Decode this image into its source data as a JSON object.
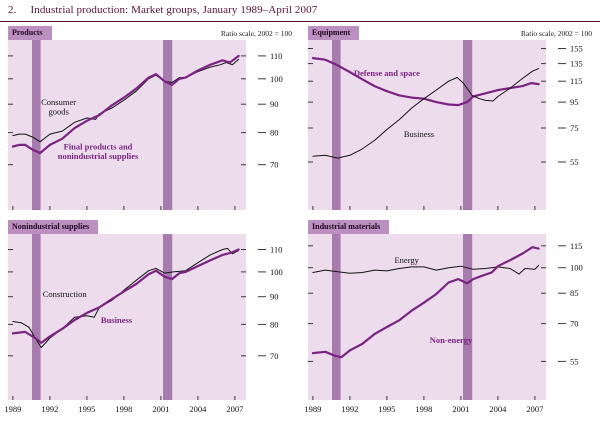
{
  "page": {
    "figure_number": "2.",
    "title": "Industrial production: Market groups, January 1989–April 2007"
  },
  "colors": {
    "plot_bg": "#ecdcec",
    "recession_band": "#a87bae",
    "panel_header": "#bb8fc0",
    "purple_line": "#7a2482",
    "black_line": "#141414",
    "title_text": "#551038",
    "tick": "#3a3a3a"
  },
  "x_axis": {
    "min": 1988.6,
    "max": 2007.9,
    "ticks": [
      1989,
      1992,
      1995,
      1998,
      2001,
      2004,
      2007
    ]
  },
  "recessions": [
    [
      1990.55,
      1991.25
    ],
    [
      2001.17,
      2001.92
    ]
  ],
  "chart_data": [
    {
      "type": "line",
      "title": "Products",
      "scale_note": "Ratio scale, 2002 = 100",
      "log_scale": true,
      "grid": false,
      "y_ticks": [
        70,
        80,
        90,
        100,
        110
      ],
      "y_domain": [
        58,
        117.5
      ],
      "series": [
        {
          "name": "Consumer goods",
          "color": "#141414",
          "width": 1,
          "x": [
            1989,
            1989.5,
            1990,
            1990.6,
            1991.2,
            1992,
            1993,
            1994,
            1995,
            1995.7,
            1996,
            1997,
            1998,
            1999,
            2000,
            2000.6,
            2001.3,
            2001.9,
            2002.5,
            2003,
            2004,
            2005,
            2005.8,
            2006.3,
            2006.8,
            2007.3
          ],
          "values": [
            79,
            79.5,
            79.5,
            78.5,
            77,
            79.5,
            80.5,
            83.5,
            85,
            84.5,
            86.5,
            88.5,
            91.5,
            95,
            100,
            101.5,
            99,
            98.5,
            100.5,
            100.5,
            103,
            105,
            106,
            107,
            106,
            108.5
          ],
          "label": {
            "lines": [
              "Consumer",
              "goods"
            ],
            "x": 1992.7,
            "y": 89,
            "bold": false
          }
        },
        {
          "name": "Final products and nonindustrial supplies",
          "color": "#7a2482",
          "width": 2.2,
          "x": [
            1989,
            1989.5,
            1990,
            1990.6,
            1991.2,
            1992,
            1993,
            1994,
            1995,
            1996,
            1997,
            1998,
            1999,
            2000,
            2000.6,
            2001.3,
            2001.9,
            2002.5,
            2003,
            2004,
            2005,
            2006,
            2006.6,
            2007.3
          ],
          "values": [
            75.5,
            76,
            76,
            74.5,
            73.5,
            76,
            78,
            81.5,
            84,
            86,
            89.5,
            92.5,
            96,
            100.5,
            102,
            99,
            97.5,
            100,
            100.5,
            103.5,
            106,
            108,
            107,
            110
          ],
          "label": {
            "lines": [
              "Final products and",
              "nonindustrial supplies"
            ],
            "x": 1995.9,
            "y": 74,
            "bold": true
          }
        }
      ]
    },
    {
      "type": "line",
      "title": "Equipment",
      "scale_note": "Ratio scale, 2002 = 100",
      "log_scale": true,
      "grid": false,
      "y_ticks": [
        55,
        75,
        95,
        115,
        135,
        155
      ],
      "y_domain": [
        35.5,
        167.5
      ],
      "series": [
        {
          "name": "Defense and space",
          "color": "#7a2482",
          "width": 2.2,
          "x": [
            1989,
            1990,
            1991,
            1992,
            1993,
            1994,
            1995,
            1996,
            1997,
            1998,
            1999,
            2000,
            2000.8,
            2001.5,
            2002,
            2003,
            2004,
            2005,
            2006,
            2006.7,
            2007.3
          ],
          "values": [
            142,
            140,
            133,
            125,
            117,
            110,
            105,
            101,
            99,
            98,
            95,
            93,
            92.5,
            95,
            100,
            103,
            106,
            108,
            110,
            113,
            112
          ],
          "label": {
            "lines": [
              "Defense and space"
            ],
            "x": 1995,
            "y": 124,
            "bold": true
          }
        },
        {
          "name": "Business",
          "color": "#141414",
          "width": 1,
          "x": [
            1989,
            1990,
            1991,
            1992,
            1993,
            1994,
            1995,
            1996,
            1997,
            1998,
            1999,
            2000,
            2000.7,
            2001.2,
            2001.9,
            2002.5,
            2003,
            2003.6,
            2004,
            2005,
            2006,
            2006.8,
            2007.3
          ],
          "values": [
            58,
            58.5,
            57,
            58.5,
            62,
            67,
            74,
            81,
            90,
            98,
            106,
            115,
            119,
            113,
            101,
            98,
            96.5,
            96,
            100,
            108,
            118,
            126,
            129
          ],
          "label": {
            "lines": [
              "Business"
            ],
            "x": 1997.6,
            "y": 71,
            "bold": false
          }
        }
      ]
    },
    {
      "type": "line",
      "title": "Nonindustrial supplies",
      "scale_note": "",
      "log_scale": true,
      "grid": false,
      "y_ticks": [
        70,
        80,
        90,
        100,
        110
      ],
      "y_domain": [
        58,
        117.5
      ],
      "series": [
        {
          "name": "Construction",
          "color": "#141414",
          "width": 1,
          "x": [
            1989,
            1989.7,
            1990.3,
            1990.8,
            1991.3,
            1992,
            1993,
            1994,
            1995,
            1995.6,
            1996,
            1997,
            1998,
            1999,
            2000,
            2000.6,
            2001.3,
            2002,
            2003,
            2004,
            2005,
            2006,
            2006.4,
            2006.8,
            2007.3
          ],
          "values": [
            81,
            80.5,
            79,
            75.5,
            72.5,
            75.5,
            78.5,
            82.5,
            83,
            82.5,
            86,
            88.5,
            92.5,
            96.5,
            100.5,
            101.5,
            99.5,
            100,
            100.5,
            104,
            107.5,
            110,
            110.5,
            108,
            109.5
          ],
          "label": {
            "lines": [
              "Construction"
            ],
            "x": 1993.2,
            "y": 91,
            "bold": false
          }
        },
        {
          "name": "Business",
          "color": "#7a2482",
          "width": 2.2,
          "x": [
            1989,
            1990,
            1990.8,
            1991.3,
            1992,
            1993,
            1994,
            1995,
            1996,
            1997,
            1998,
            1999,
            2000,
            2000.6,
            2001.3,
            2001.9,
            2002.5,
            2003,
            2004,
            2005,
            2006,
            2006.7,
            2007.3
          ],
          "values": [
            77,
            77.5,
            75.5,
            74,
            76,
            78.5,
            81.5,
            84,
            86,
            89,
            92,
            95,
            99,
            100.5,
            98,
            97,
            99.5,
            100,
            102.5,
            105,
            107.5,
            108.5,
            110
          ],
          "label": {
            "lines": [
              "Business"
            ],
            "x": 1997.4,
            "y": 81.5,
            "bold": true
          }
        }
      ]
    },
    {
      "type": "line",
      "title": "Industrial materials",
      "scale_note": "",
      "log_scale": true,
      "grid": false,
      "y_ticks": [
        55,
        70,
        85,
        100,
        115
      ],
      "y_domain": [
        43,
        124
      ],
      "series": [
        {
          "name": "Energy",
          "color": "#141414",
          "width": 1,
          "x": [
            1989,
            1990,
            1991,
            1992,
            1993,
            1994,
            1995,
            1996,
            1997,
            1998,
            1999,
            2000,
            2001,
            2002,
            2003,
            2004,
            2005,
            2005.7,
            2006.2,
            2007,
            2007.3
          ],
          "values": [
            97,
            98.5,
            97.5,
            96.5,
            97,
            98.5,
            98,
            99.5,
            100.5,
            100.5,
            98.5,
            100,
            101,
            99,
            99.5,
            100.5,
            99.5,
            96,
            99.5,
            99,
            101.5
          ],
          "label": {
            "lines": [
              "Energy"
            ],
            "x": 1996.6,
            "y": 105,
            "bold": false
          }
        },
        {
          "name": "Non-energy",
          "color": "#7a2482",
          "width": 2.2,
          "x": [
            1989,
            1990,
            1990.8,
            1991.3,
            1992,
            1993,
            1994,
            1995,
            1996,
            1997,
            1998,
            1999,
            2000,
            2000.8,
            2001.5,
            2002,
            2002.7,
            2003.5,
            2004,
            2005,
            2006,
            2006.8,
            2007.3
          ],
          "values": [
            58,
            58.5,
            57,
            56.5,
            59,
            61.5,
            65.5,
            68.5,
            71.5,
            76,
            80,
            84.5,
            91,
            93,
            90.5,
            93,
            95,
            97,
            101,
            105,
            109.5,
            114,
            113
          ],
          "label": {
            "lines": [
              "Non-energy"
            ],
            "x": 2000.2,
            "y": 63,
            "bold": true
          }
        }
      ]
    }
  ]
}
